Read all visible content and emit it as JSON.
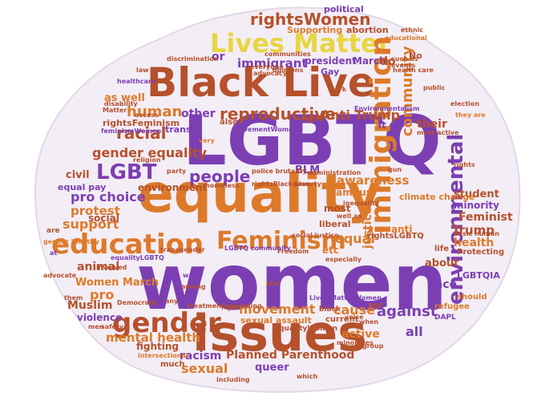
{
  "cloud": {
    "colors": {
      "orange": "#dd7a2a",
      "purple": "#7b3fb3",
      "rust": "#b5512c",
      "yellow": "#e8d541",
      "blob": "#f3edf5"
    },
    "words": {
      "women": "women",
      "equality": "equality",
      "lgbtq": "LGBTQ",
      "black_live": "Black Live",
      "issues": "issues",
      "lives_matter": "Lives Matter",
      "immigration": "immigration",
      "education": "education",
      "feminism": "Feminism",
      "environmental": "environmental",
      "gender": "gender",
      "lgbt": "LGBT",
      "human": "human",
      "reproductive": "reproductive",
      "people": "people",
      "rights_women": "rightsWomen",
      "community": "community",
      "racial": "racial",
      "gender_equality": "gender equality",
      "pro_choice": "pro choice",
      "protest": "protest",
      "support": "support",
      "anti_trump": "Anti Trump",
      "immigrant": "immigrant",
      "movement": "movement",
      "sexual": "sexual",
      "planned_parenthood": "Planned Parenthood",
      "mental_health": "mental health",
      "racism": "racism",
      "against": "against",
      "all": "all",
      "cause": "cause",
      "active": "active",
      "feminist": "Feminist",
      "trump": "Trump",
      "health": "health",
      "student": "student",
      "minority": "minority",
      "race": "race",
      "about": "about",
      "muslim": "Muslim",
      "women_march": "Women March",
      "animal": "animal",
      "pro": "pro",
      "violence": "violence",
      "fighting": "fighting",
      "queer": "queer",
      "sexual_assault": "sexual assault",
      "equal": "equal",
      "justice": "justice",
      "awareness": "awareness",
      "social": "social",
      "civil": "civil",
      "environment": "environment",
      "equal_pay": "equal pay",
      "as_well": "as well",
      "other": "other",
      "rights_feminism": "rightsFeminism",
      "president": "president",
      "march": "March",
      "do": "do",
      "or": "or",
      "supporting": "Supporting",
      "abortion": "abortion",
      "political": "political",
      "no": "No",
      "gay": "Gay",
      "their": "their",
      "anti": "anti",
      "climate_change": "climate change",
      "lgbtqia": "LGBTQIA",
      "refugee": "refugee",
      "dapl": "DAPL",
      "should": "should",
      "protecting": "Protecting",
      "most": "most",
      "liberal": "liberal",
      "campus": "campus",
      "etc": "etc",
      "current": "current",
      "blm": "BLM",
      "trans": "trans",
      "also": "also",
      "fight": "fight",
      "it": "it",
      "life": "life",
      "rights_lgbtq": "rightsLGBTQ",
      "equality_women": "equalityWomen",
      "intersectional": "intersectional",
      "much": "much",
      "democratic": "Democratic",
      "advocate": "advocate",
      "gender_identity": "gender identity",
      "at": "at",
      "are": "are",
      "them": "them",
      "including": "including",
      "which": "which",
      "group": "group",
      "minorities": "minorities",
      "treatment_regarding": "treatment regarding",
      "just": "just",
      "wall": "wall",
      "involved": "involved",
      "equality_lgbtq": "equalityLGBTQ",
      "transgender": "transgender",
      "police_brutality": "police brutality",
      "freedom": "Freedom",
      "lgbtq_community": "LGBTQ community",
      "especially": "especially",
      "homeless": "homeless",
      "rights_black_live": "rightsBlack Live",
      "social_justice": "social justice",
      "well_as": "well as",
      "poverty": "poverty",
      "administration": "administration",
      "inequality": "inequality",
      "rights": "rights",
      "basic_human": "basic human",
      "election": "election",
      "gun": "gun",
      "most_active": "most active",
      "they_are": "they are",
      "public": "public",
      "work": "work",
      "environmentalism": "Environmentalism",
      "health_care": "health care",
      "educational": "educational",
      "ethnic": "ethnic",
      "such_as": "such as",
      "events": "events",
      "opinions": "opinions",
      "communities": "communities",
      "discrimination": "discrimination",
      "law": "law",
      "healthcare": "healthcare",
      "disability": "disability",
      "matter": "Matter",
      "religion": "religion",
      "access": "access",
      "feminism_women": "feminismWomen",
      "movement_women": "movementWomen",
      "lives_matter_women": "Lives MatterWomen",
      "very": "very",
      "right": "right",
      "safety": "safety",
      "men": "men",
      "poc": "POC",
      "when": "when",
      "black": "black",
      "voice": "voice",
      "everyone": "everyone",
      "advocacy": "advocacy",
      "among": "among",
      "any": "any",
      "party": "party"
    }
  }
}
